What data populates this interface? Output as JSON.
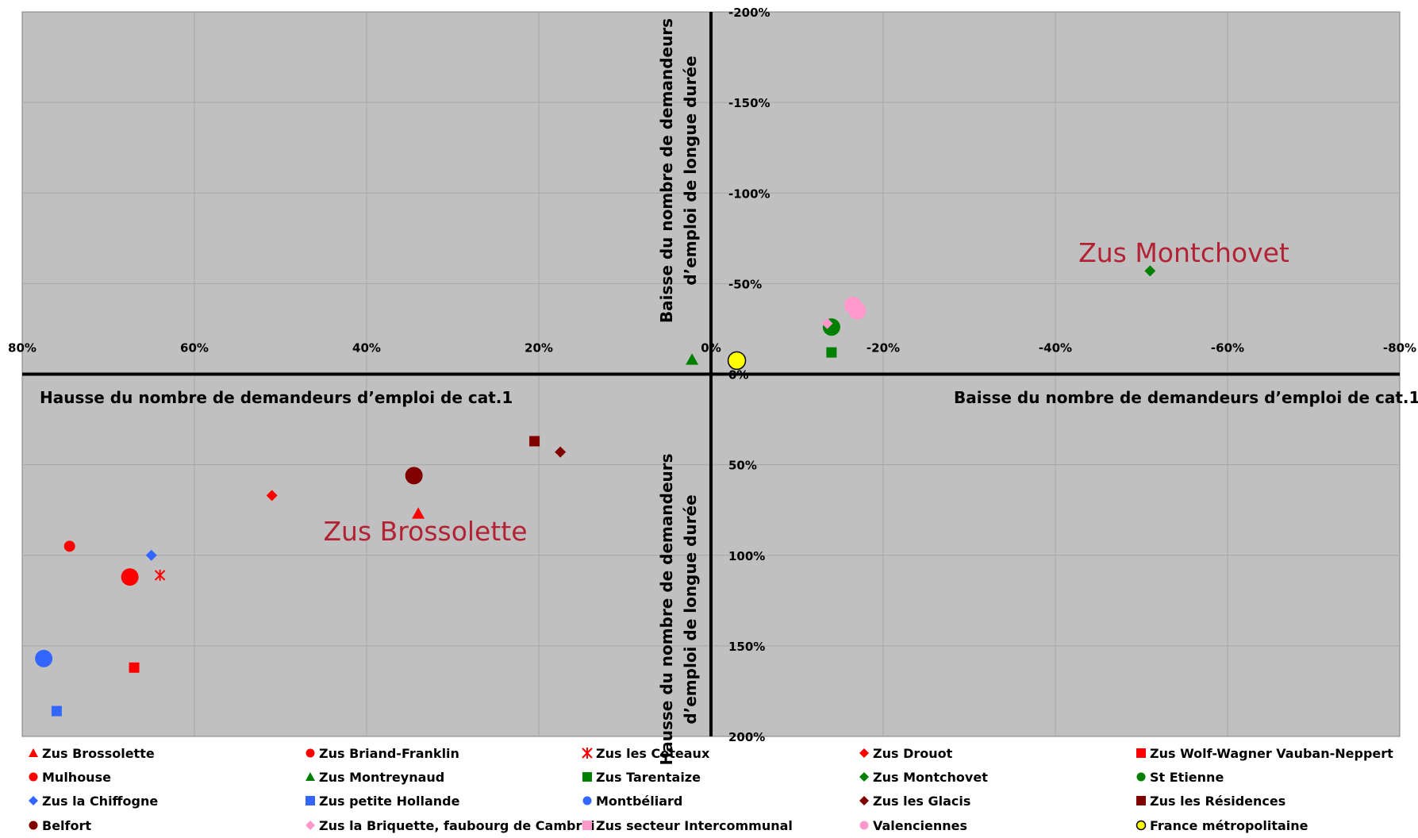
{
  "chart_data": {
    "type": "scatter",
    "title": "",
    "xlim": [
      80,
      -80
    ],
    "ylim": [
      -200,
      200
    ],
    "x_ticks": [
      "80%",
      "60%",
      "40%",
      "20%",
      "0%",
      "-20%",
      "-40%",
      "-60%",
      "-80%"
    ],
    "y_ticks": [
      "-200%",
      "-150%",
      "-100%",
      "-50%",
      "0%",
      "50%",
      "100%",
      "150%",
      "200%"
    ],
    "quadrant_labels": {
      "left": "Hausse du nombre de demandeurs d’emploi de cat.1",
      "right": "Baisse du nombre de demandeurs d’emploi de cat.1",
      "top": [
        "Baisse du nombre de demandeurs",
        "d’emploi de longue durée"
      ],
      "bottom": [
        "Hausse du nombre de demandeurs",
        "d’emploi de longue durée"
      ]
    },
    "annotations": [
      {
        "text": "Zus Montchovet",
        "x": -55,
        "y": -67
      },
      {
        "text": "Zus Brossolette",
        "x": 33.5,
        "y": 87
      }
    ],
    "grid": true,
    "legend_position": "bottom",
    "colors": {
      "plot_bg": "#c0c0c0",
      "grid": "#a6a6a6",
      "axis": "#000000",
      "annotation": "#b22234"
    },
    "series": [
      {
        "name": "Zus Brossolette",
        "marker": "triangle",
        "color": "#ff0000",
        "size": "small",
        "points": [
          [
            34,
            77
          ]
        ]
      },
      {
        "name": "Zus Briand-Franklin",
        "marker": "circle",
        "color": "#ff0000",
        "size": "small",
        "points": [
          [
            74.5,
            95
          ]
        ]
      },
      {
        "name": "Zus les Coteaux",
        "marker": "star",
        "color": "#ff0000",
        "size": "small",
        "points": [
          [
            64,
            111
          ]
        ]
      },
      {
        "name": "Zus Drouot",
        "marker": "diamond",
        "color": "#ff0000",
        "size": "small",
        "points": [
          [
            51,
            67
          ]
        ]
      },
      {
        "name": "Zus Wolf-Wagner Vauban-Neppert",
        "marker": "square",
        "color": "#ff0000",
        "size": "small",
        "points": [
          [
            67,
            162
          ]
        ]
      },
      {
        "name": "Mulhouse",
        "marker": "circle",
        "color": "#ff0000",
        "size": "large",
        "points": [
          [
            67.5,
            112
          ]
        ]
      },
      {
        "name": "Zus Montreynaud",
        "marker": "triangle",
        "color": "#008000",
        "size": "small",
        "points": [
          [
            2.2,
            -8
          ]
        ]
      },
      {
        "name": "Zus Tarentaize",
        "marker": "square",
        "color": "#008000",
        "size": "small",
        "points": [
          [
            -14,
            -12
          ]
        ]
      },
      {
        "name": "Zus Montchovet",
        "marker": "diamond",
        "color": "#008000",
        "size": "small",
        "points": [
          [
            -51,
            -57
          ]
        ]
      },
      {
        "name": "St Etienne",
        "marker": "circle",
        "color": "#008000",
        "size": "large",
        "points": [
          [
            -14,
            -26
          ]
        ]
      },
      {
        "name": "Zus la Chiffogne",
        "marker": "diamond",
        "color": "#3366ff",
        "size": "small",
        "points": [
          [
            65,
            100
          ]
        ]
      },
      {
        "name": "Zus petite Hollande",
        "marker": "square",
        "color": "#3366ff",
        "size": "small",
        "points": [
          [
            76,
            186
          ]
        ]
      },
      {
        "name": "Montbéliard",
        "marker": "circle",
        "color": "#3366ff",
        "size": "large",
        "points": [
          [
            77.5,
            157
          ]
        ]
      },
      {
        "name": "Zus les Glacis",
        "marker": "diamond",
        "color": "#800000",
        "size": "small",
        "points": [
          [
            17.5,
            43
          ]
        ]
      },
      {
        "name": "Zus les Résidences",
        "marker": "square",
        "color": "#800000",
        "size": "small",
        "points": [
          [
            20.5,
            37
          ]
        ]
      },
      {
        "name": "Belfort",
        "marker": "circle",
        "color": "#800000",
        "size": "large",
        "points": [
          [
            34.5,
            56
          ]
        ]
      },
      {
        "name": "Zus la Briquette, faubourg de Cambrai",
        "marker": "diamond",
        "color": "#ff99cc",
        "size": "small",
        "points": [
          [
            -13.5,
            -28
          ]
        ]
      },
      {
        "name": "Zus secteur Intercommunal",
        "marker": "square",
        "color": "#ff99cc",
        "size": "small",
        "points": []
      },
      {
        "name": "Valenciennes",
        "marker": "circle",
        "color": "#ff99cc",
        "size": "large",
        "points": [
          [
            -16.5,
            -38
          ],
          [
            -17,
            -35
          ]
        ]
      },
      {
        "name": "France métropolitaine",
        "marker": "circle",
        "color": "#ffff00",
        "size": "large",
        "points": [
          [
            -3,
            -7.5
          ]
        ]
      }
    ]
  }
}
